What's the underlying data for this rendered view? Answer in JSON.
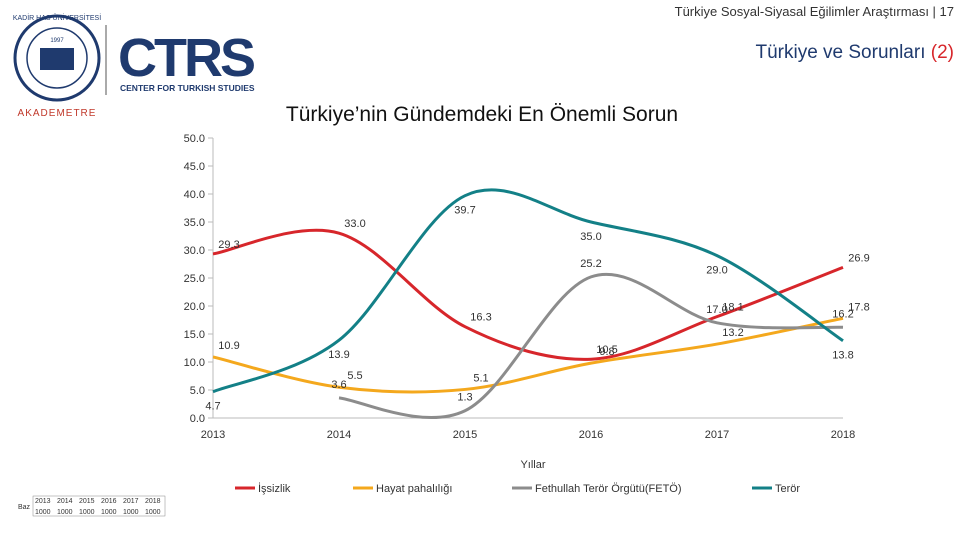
{
  "header": {
    "page_label": "Türkiye Sosyal-Siyasal Eğilimler Araştırması | 17",
    "title_main": "Türkiye ve Sorunları",
    "title_num": "(2)",
    "logo_university": "KADİR HAS ÜNİVERSİTESİ",
    "logo_year": "1997",
    "logo_ctrs": "CTRS",
    "logo_ctrs_sub": "CENTER FOR TURKISH STUDIES",
    "logo_akademetre": "AKADEMETRE"
  },
  "base": {
    "label": "Baz",
    "years": [
      "2013",
      "2014",
      "2015",
      "2016",
      "2017",
      "2018"
    ],
    "values": [
      1000,
      1000,
      1000,
      1000,
      1000,
      1000
    ]
  },
  "chart_data": {
    "type": "line",
    "title": "Türkiye’nin Gündemdeki En Önemli Sorun",
    "x_label": "Yıllar",
    "categories": [
      "2013",
      "2014",
      "2015",
      "2016",
      "2017",
      "2018"
    ],
    "ylim": [
      0,
      50
    ],
    "yticks": [
      {
        "value": 0,
        "label": "0.0"
      },
      {
        "value": 5,
        "label": "5.0"
      },
      {
        "value": 10,
        "label": "10.0"
      },
      {
        "value": 15,
        "label": "15.0"
      },
      {
        "value": 20,
        "label": "20.0"
      },
      {
        "value": 25,
        "label": "25.0"
      },
      {
        "value": 30,
        "label": "30.0"
      },
      {
        "value": 35,
        "label": "35.0"
      },
      {
        "value": 40,
        "label": "40.0"
      },
      {
        "value": 45,
        "label": "45.0"
      },
      {
        "value": 50,
        "label": "50.0"
      }
    ],
    "legend": "bottom",
    "series": [
      {
        "name": "İşsizlik",
        "color": "#d7262b",
        "values": [
          29.3,
          33.0,
          16.3,
          10.5,
          18.1,
          26.9
        ],
        "value_labels": [
          "29.3",
          "33.0",
          "16.3",
          "10.5",
          "18.1",
          "26.9"
        ]
      },
      {
        "name": "Hayat pahalılığı",
        "color": "#f4a81d",
        "values": [
          10.9,
          5.5,
          5.1,
          9.8,
          13.2,
          17.8
        ],
        "value_labels": [
          "10.9",
          "5.5",
          "5.1",
          "9.8",
          "13.2",
          "17.8"
        ]
      },
      {
        "name": "Fethullah Terör Örgütü(FETÖ)",
        "color": "#8c8c8c",
        "values": [
          null,
          3.6,
          1.3,
          25.2,
          17.0,
          16.2
        ],
        "value_labels": [
          null,
          "3.6",
          "1.3",
          "25.2",
          "17.0",
          "16.2"
        ]
      },
      {
        "name": "Terör",
        "color": "#138087",
        "values": [
          4.7,
          13.9,
          39.7,
          35.0,
          29.0,
          13.8
        ],
        "value_labels": [
          "4.7",
          "13.9",
          "39.7",
          "35.0",
          "29.0",
          "13.8"
        ]
      }
    ]
  }
}
